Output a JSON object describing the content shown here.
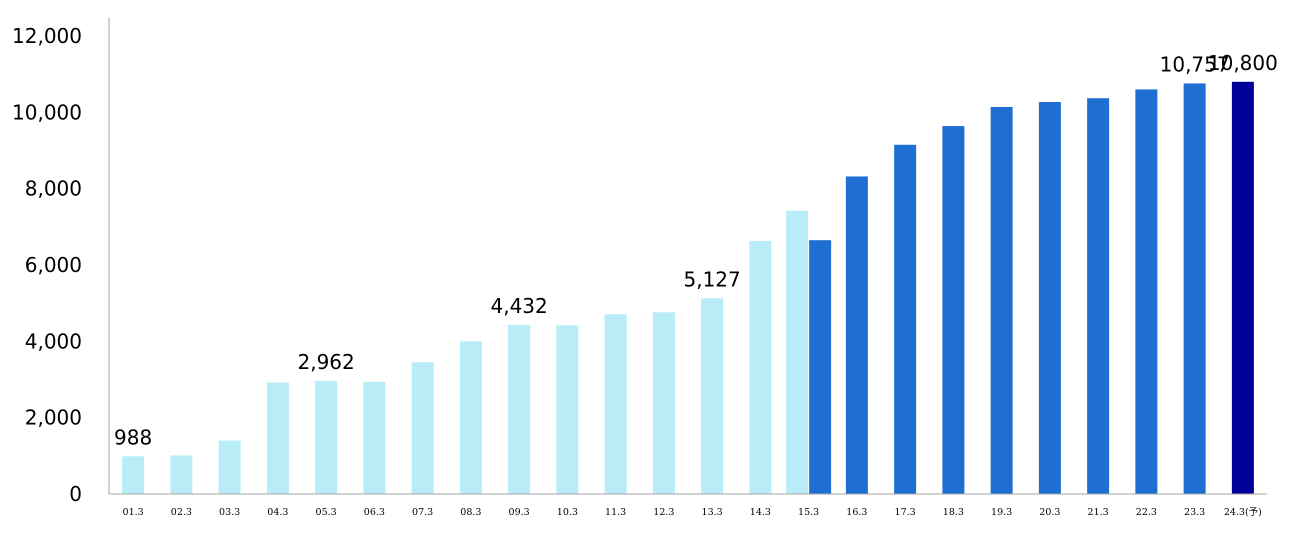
{
  "chart_data": {
    "type": "bar",
    "title": "",
    "xlabel": "",
    "ylabel": "",
    "ylim": [
      0,
      12000
    ],
    "yticks": [
      0,
      2000,
      4000,
      6000,
      8000,
      10000,
      12000
    ],
    "ytick_labels": [
      "0",
      "2,000",
      "4,000",
      "6,000",
      "8,000",
      "10,000",
      "12,000"
    ],
    "grid": false,
    "legend": "none",
    "categories": [
      "01.3",
      "02.3",
      "03.3",
      "04.3",
      "05.3",
      "06.3",
      "07.3",
      "08.3",
      "09.3",
      "10.3",
      "11.3",
      "12.3",
      "13.3",
      "14.3",
      "15.3",
      "16.3",
      "17.3",
      "18.3",
      "19.3",
      "20.3",
      "21.3",
      "22.3",
      "23.3",
      "24.3(予)"
    ],
    "series": [
      {
        "color": "#b8ecf7",
        "values": [
          988,
          1010,
          1400,
          2920,
          2962,
          2940,
          3450,
          4000,
          4432,
          4420,
          4710,
          4760,
          5127,
          6630,
          7420,
          null,
          null,
          null,
          null,
          null,
          null,
          null,
          null,
          null
        ]
      },
      {
        "color": "#1f6fd3",
        "values": [
          null,
          null,
          null,
          null,
          null,
          null,
          null,
          null,
          null,
          null,
          null,
          null,
          null,
          null,
          6650,
          8320,
          9150,
          9640,
          10140,
          10270,
          10370,
          10600,
          10757,
          null
        ]
      },
      {
        "color": "#000099",
        "values": [
          null,
          null,
          null,
          null,
          null,
          null,
          null,
          null,
          null,
          null,
          null,
          null,
          null,
          null,
          null,
          null,
          null,
          null,
          null,
          null,
          null,
          null,
          null,
          10800
        ]
      }
    ],
    "data_labels": [
      {
        "category_index": 0,
        "series_index": 0,
        "text": "988"
      },
      {
        "category_index": 4,
        "series_index": 0,
        "text": "2,962"
      },
      {
        "category_index": 8,
        "series_index": 0,
        "text": "4,432"
      },
      {
        "category_index": 12,
        "series_index": 0,
        "text": "5,127"
      },
      {
        "category_index": 22,
        "series_index": 1,
        "text": "10,757"
      },
      {
        "category_index": 23,
        "series_index": 2,
        "text": "10,800"
      }
    ]
  }
}
